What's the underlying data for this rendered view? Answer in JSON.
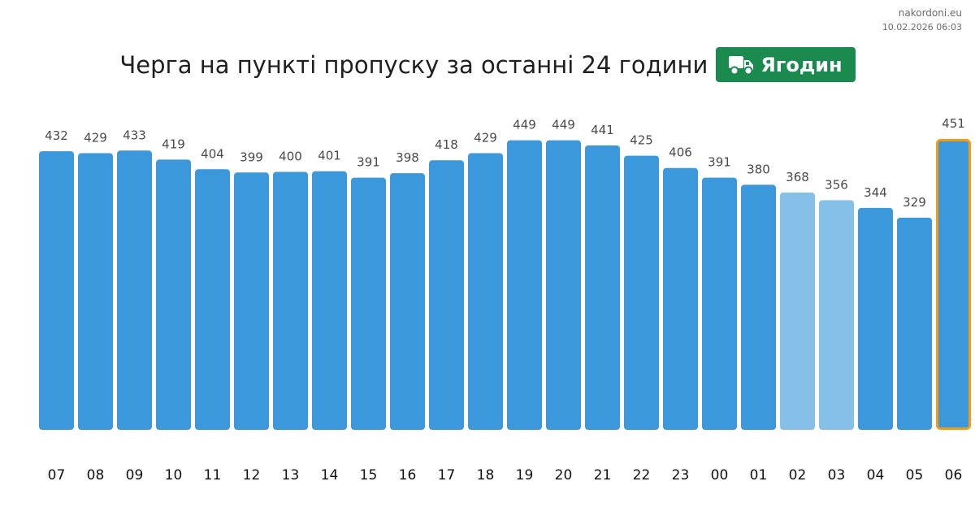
{
  "header": {
    "site": "nakordoni.eu",
    "timestamp": "10.02.2026 06:03",
    "title": "Черга на пункті пропуску за останні 24 години",
    "checkpoint": "Ягодин",
    "checkpoint_icon": "truck-icon",
    "badge_color": "#1a8a4f"
  },
  "chart_data": {
    "type": "bar",
    "categories": [
      "07",
      "08",
      "09",
      "10",
      "11",
      "12",
      "13",
      "14",
      "15",
      "16",
      "17",
      "18",
      "19",
      "20",
      "21",
      "22",
      "23",
      "00",
      "01",
      "02",
      "03",
      "04",
      "05",
      "06"
    ],
    "values": [
      432,
      429,
      433,
      419,
      404,
      399,
      400,
      401,
      391,
      398,
      418,
      429,
      449,
      449,
      441,
      425,
      406,
      391,
      380,
      368,
      356,
      344,
      329,
      451
    ],
    "ylim": [
      0,
      451
    ],
    "bar_color": "#3a98db",
    "estimated_bar_color": "#85c0e8",
    "estimated_categories": [
      "02",
      "03"
    ],
    "highlight_category": "06",
    "highlight_color": "#f39c12",
    "grid": false,
    "legend": "none"
  }
}
